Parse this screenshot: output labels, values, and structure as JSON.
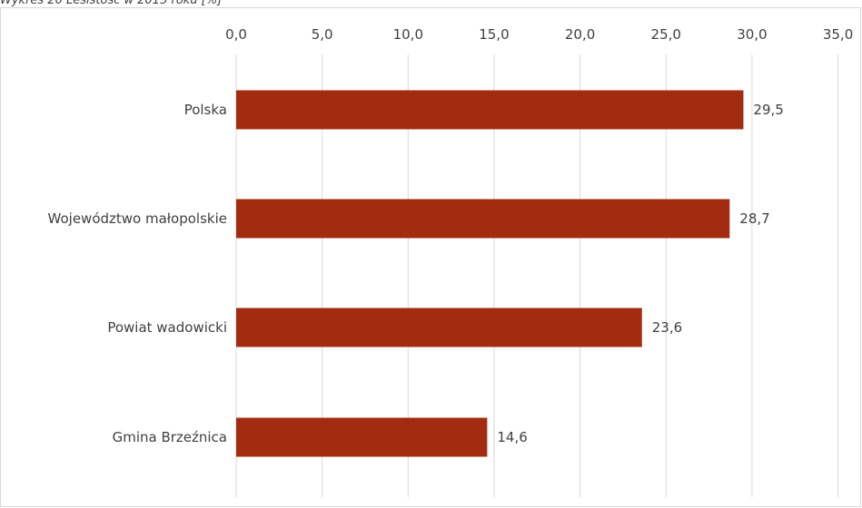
{
  "caption": "Wykres 20 Lesistość w 2015 roku [%]",
  "chart_data": {
    "type": "bar",
    "orientation": "horizontal",
    "categories": [
      "Polska",
      "Województwo małopolskie",
      "Powiat wadowicki",
      "Gmina Brzeźnica"
    ],
    "values": [
      29.5,
      28.7,
      23.6,
      14.6
    ],
    "value_labels": [
      "29,5",
      "28,7",
      "23,6",
      "14,6"
    ],
    "xlim": [
      0,
      35
    ],
    "x_ticks": [
      0,
      5,
      10,
      15,
      20,
      25,
      30,
      35
    ],
    "x_tick_labels": [
      "0,0",
      "5,0",
      "10,0",
      "15,0",
      "20,0",
      "25,0",
      "30,0",
      "35,0"
    ],
    "x_axis_position": "top",
    "grid": true,
    "legend": "none",
    "bar_color": "#A32C10",
    "grid_color": "#D9D9D9",
    "text_color": "#404040"
  }
}
